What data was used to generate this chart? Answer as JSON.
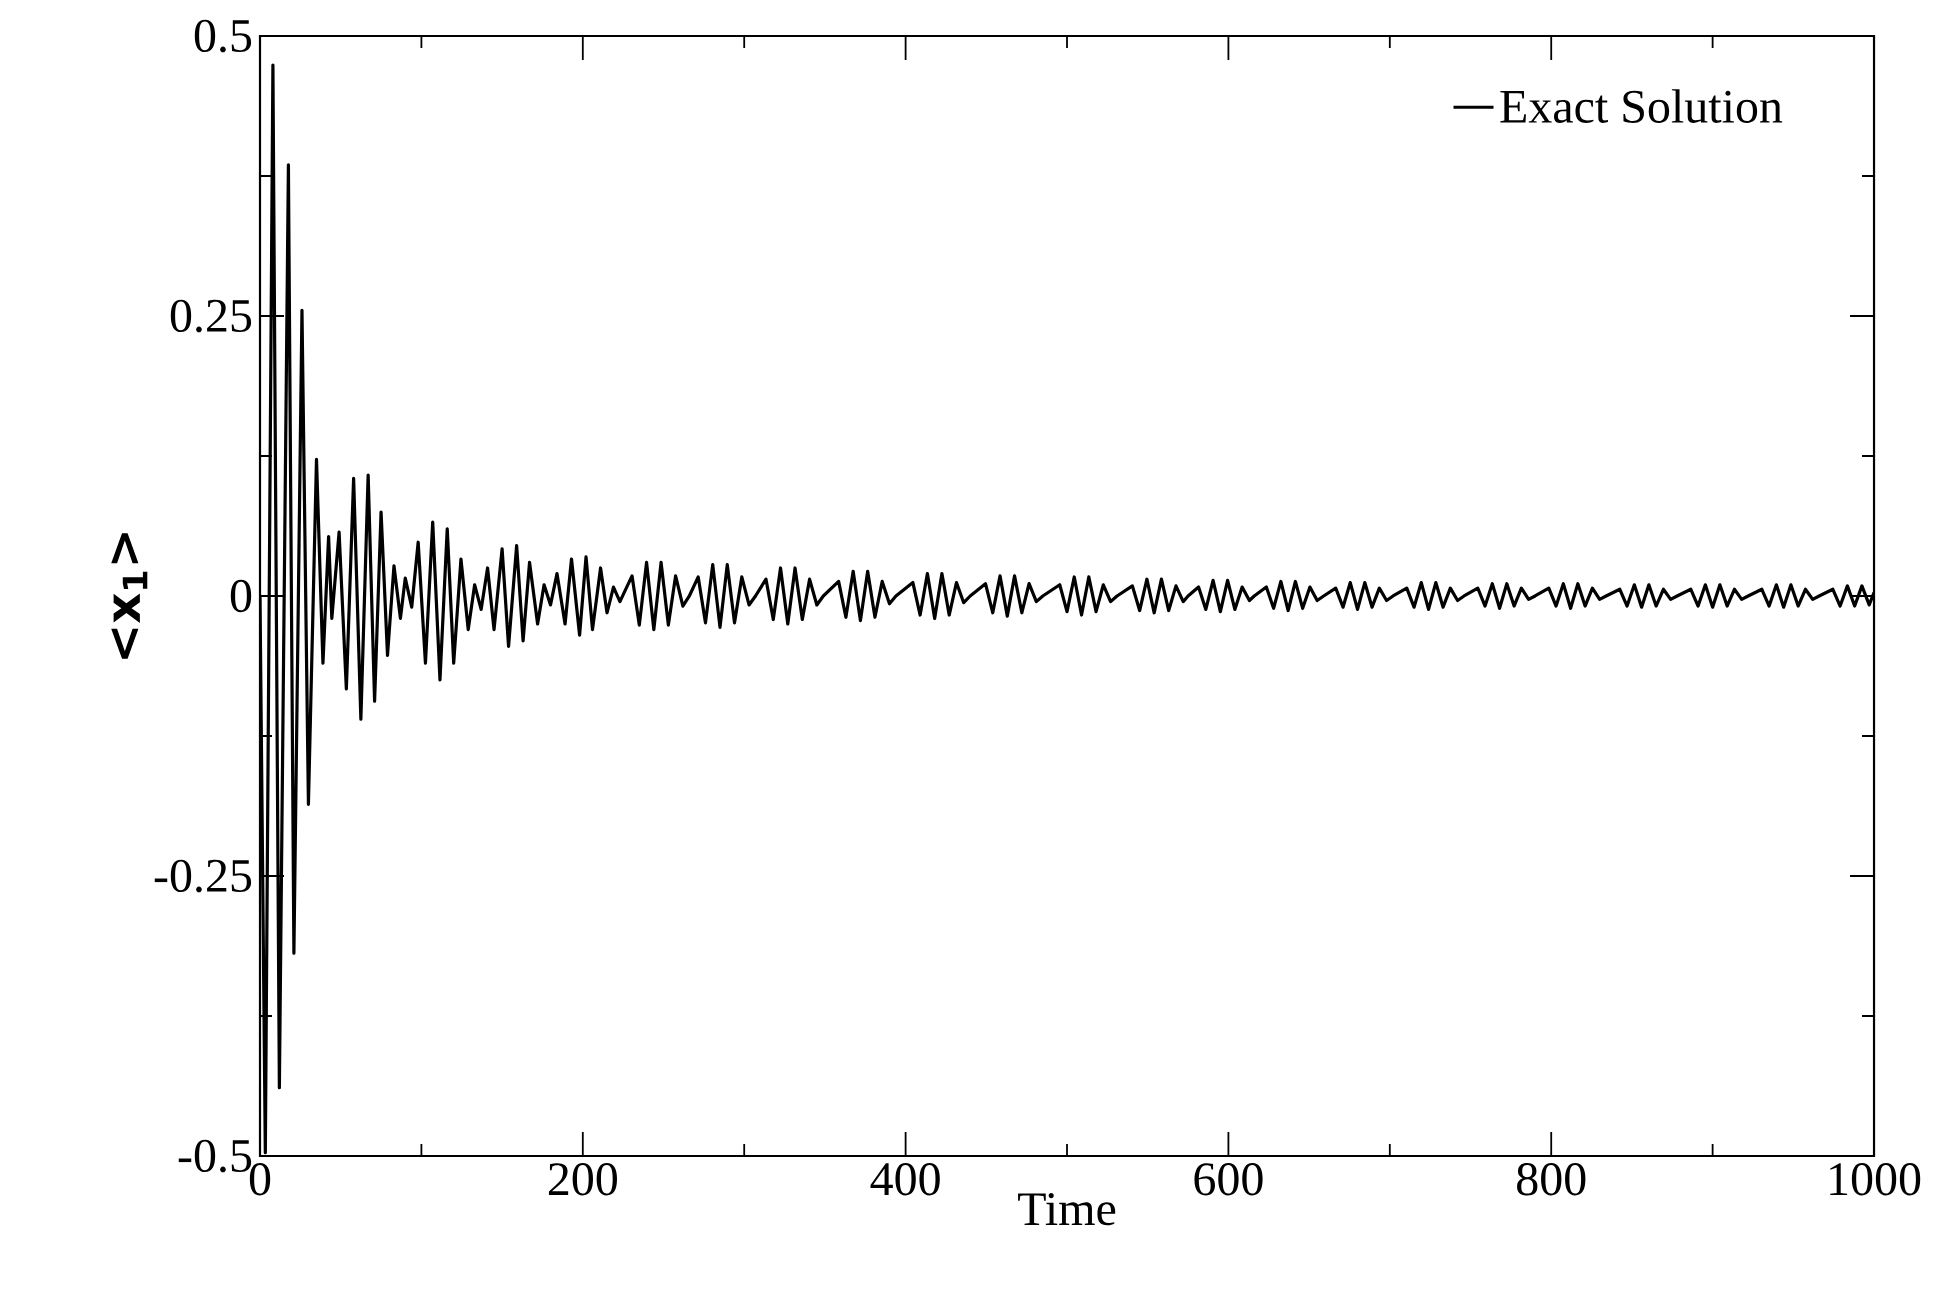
{
  "chart_data": {
    "type": "line",
    "xlabel": "Time",
    "ylabel": "<x$_{1}$>",
    "xlim": [
      0,
      1000
    ],
    "ylim": [
      -0.5,
      0.5
    ],
    "xticks": [
      0,
      200,
      400,
      600,
      800,
      1000
    ],
    "yticks": [
      -0.5,
      -0.25,
      0,
      0.25,
      0.5
    ],
    "legend": "top right",
    "marker": "none",
    "series": [
      {
        "name": "Exact Solution",
        "color": "#000000",
        "x": [
          0,
          3.3,
          8,
          12,
          17.6,
          21,
          26,
          30,
          35,
          39,
          42.5,
          44.5,
          49,
          53.5,
          58,
          62.5,
          67,
          71,
          75,
          79,
          83,
          87,
          90,
          94,
          98,
          102.5,
          107,
          111.5,
          116,
          120,
          124.5,
          129,
          133,
          137,
          141,
          145,
          150,
          154,
          159,
          163,
          167,
          172,
          176,
          180,
          184,
          189,
          193,
          198,
          202,
          206,
          211,
          215,
          219,
          223,
          230.5,
          235,
          239.5,
          244,
          248.5,
          253,
          257.5,
          262,
          266,
          271.5,
          276,
          280.5,
          285,
          289.5,
          294,
          298.5,
          303,
          307,
          313.5,
          318,
          322.5,
          327,
          331.5,
          336,
          340.5,
          345,
          349,
          358.5,
          363,
          367.5,
          372,
          376.5,
          381,
          385.5,
          390,
          394,
          404.5,
          409,
          413.5,
          418,
          422.5,
          427,
          431.5,
          436,
          440,
          449.5,
          454,
          458.5,
          463,
          467.5,
          472,
          476.5,
          481,
          485,
          495.5,
          500,
          504.5,
          509,
          513.5,
          518,
          522.5,
          527,
          531,
          540.5,
          545,
          549.5,
          554,
          558.5,
          563,
          567.5,
          572,
          575,
          581.5,
          586,
          590.5,
          595,
          599.5,
          604,
          608.5,
          613,
          616,
          623.5,
          628,
          632.5,
          637,
          641.5,
          646,
          650.5,
          655,
          659,
          666.5,
          671,
          675.5,
          680,
          684.5,
          689,
          693.5,
          698,
          702,
          710.5,
          715,
          719.5,
          724,
          728.5,
          733,
          737.5,
          742,
          746,
          754.5,
          759,
          763.5,
          768,
          772.5,
          777,
          781.5,
          786,
          790,
          798.5,
          803,
          807.5,
          812,
          816.5,
          821,
          825.5,
          830,
          834,
          842.5,
          847,
          851.5,
          856,
          860.5,
          865,
          869.5,
          874,
          878,
          886.5,
          891,
          895.5,
          900,
          904.5,
          909,
          913.5,
          918,
          922,
          930.5,
          935,
          939.5,
          944,
          948.5,
          953,
          957.5,
          962,
          966,
          974.5,
          979,
          983.5,
          988,
          992.5,
          997,
          1000
        ],
        "values": [
          0,
          -0.497,
          0.474,
          -0.439,
          0.385,
          -0.319,
          0.255,
          -0.186,
          0.122,
          -0.06,
          0.053,
          -0.02,
          0.057,
          -0.083,
          0.105,
          -0.11,
          0.108,
          -0.094,
          0.075,
          -0.053,
          0.027,
          -0.02,
          0.016,
          -0.01,
          0.048,
          -0.06,
          0.066,
          -0.075,
          0.06,
          -0.06,
          0.033,
          -0.03,
          0.01,
          -0.012,
          0.025,
          -0.03,
          0.042,
          -0.045,
          0.045,
          -0.04,
          0.03,
          -0.025,
          0.01,
          -0.008,
          0.02,
          -0.025,
          0.033,
          -0.035,
          0.035,
          -0.03,
          0.025,
          -0.015,
          0.008,
          -0.005,
          0.018,
          -0.026,
          0.03,
          -0.03,
          0.03,
          -0.026,
          0.018,
          -0.009,
          0,
          0.017,
          -0.024,
          0.028,
          -0.028,
          0.028,
          -0.024,
          0.017,
          -0.008,
          0,
          0.015,
          -0.021,
          0.025,
          -0.025,
          0.025,
          -0.021,
          0.015,
          -0.008,
          0,
          0.013,
          -0.019,
          0.022,
          -0.022,
          0.022,
          -0.019,
          0.013,
          -0.007,
          0,
          0.012,
          -0.017,
          0.02,
          -0.02,
          0.02,
          -0.017,
          0.012,
          -0.006,
          0,
          0.011,
          -0.015,
          0.018,
          -0.018,
          0.018,
          -0.015,
          0.011,
          -0.005,
          0,
          0.01,
          -0.014,
          0.017,
          -0.017,
          0.017,
          -0.014,
          0.01,
          -0.005,
          0,
          0.009,
          -0.013,
          0.015,
          -0.015,
          0.015,
          -0.013,
          0.009,
          -0.005,
          0,
          0.008,
          -0.012,
          0.014,
          -0.014,
          0.014,
          -0.012,
          0.008,
          -0.004,
          0,
          0.008,
          -0.011,
          0.013,
          -0.013,
          0.013,
          -0.011,
          0.008,
          -0.004,
          0,
          0.007,
          -0.01,
          0.012,
          -0.012,
          0.012,
          -0.01,
          0.007,
          -0.004,
          0,
          0.007,
          -0.01,
          0.012,
          -0.012,
          0.012,
          -0.01,
          0.007,
          -0.004,
          0,
          0.007,
          -0.009,
          0.011,
          -0.011,
          0.011,
          -0.009,
          0.007,
          -0.003,
          0,
          0.007,
          -0.009,
          0.011,
          -0.011,
          0.011,
          -0.009,
          0.007,
          -0.003,
          0,
          0.006,
          -0.009,
          0.01,
          -0.01,
          0.01,
          -0.009,
          0.006,
          -0.003,
          0,
          0.006,
          -0.009,
          0.01,
          -0.01,
          0.01,
          -0.009,
          0.006,
          -0.003,
          0,
          0.006,
          -0.009,
          0.01,
          -0.01,
          0.01,
          -0.009,
          0.006,
          -0.003,
          0,
          0.006,
          -0.009,
          0.009,
          -0.009,
          0.009,
          -0.008,
          0.003
        ]
      }
    ]
  }
}
